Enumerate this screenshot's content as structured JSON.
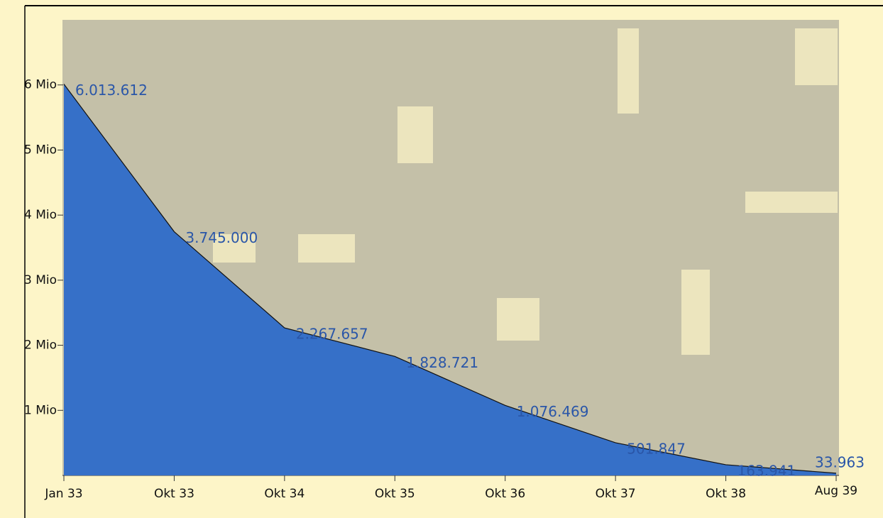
{
  "chart_data": {
    "type": "area",
    "categories": [
      "Jan 33",
      "Okt 33",
      "Okt 34",
      "Okt 35",
      "Okt 36",
      "Okt 37",
      "Okt 38",
      "Aug 39"
    ],
    "values": [
      6013612,
      3745000,
      2267657,
      1828721,
      1076469,
      501847,
      163941,
      33963
    ],
    "value_labels": [
      "6.013.612",
      "3.745.000",
      "2.267.657",
      "1.828.721",
      "1.076.469",
      "501.847",
      "163.941",
      "33.963"
    ],
    "color": "#3670c8",
    "ylim": [
      0,
      7000000
    ],
    "yticks": [
      {
        "value": 1000000,
        "label": "1 Mio"
      },
      {
        "value": 2000000,
        "label": "2 Mio"
      },
      {
        "value": 3000000,
        "label": "3 Mio"
      },
      {
        "value": 4000000,
        "label": "4 Mio"
      },
      {
        "value": 5000000,
        "label": "5 Mio"
      },
      {
        "value": 6000000,
        "label": "6 Mio"
      }
    ]
  }
}
